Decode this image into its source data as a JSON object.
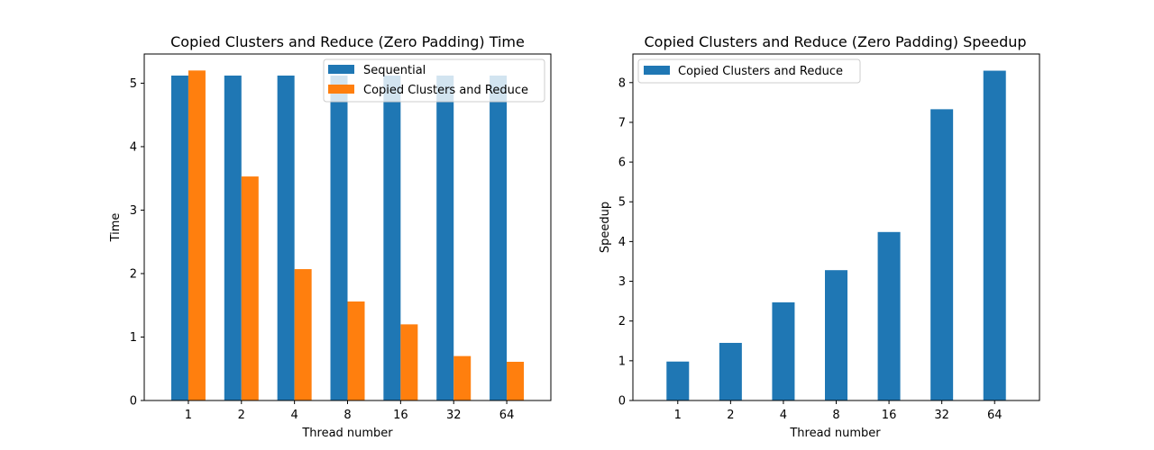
{
  "chart_data": [
    {
      "type": "bar",
      "title": "Copied Clusters and Reduce (Zero Padding) Time",
      "xlabel": "Thread number",
      "ylabel": "Time",
      "categories": [
        "1",
        "2",
        "4",
        "8",
        "16",
        "32",
        "64"
      ],
      "series": [
        {
          "name": "Sequential",
          "color": "#1f77b4",
          "values": [
            5.12,
            5.12,
            5.12,
            5.12,
            5.12,
            5.12,
            5.12
          ]
        },
        {
          "name": "Copied Clusters and Reduce",
          "color": "#ff7f0e",
          "values": [
            5.2,
            3.53,
            2.07,
            1.56,
            1.2,
            0.7,
            0.61
          ]
        }
      ],
      "ylim": [
        0,
        5.46
      ],
      "yticks": [
        0,
        1,
        2,
        3,
        4,
        5
      ],
      "grid": false,
      "legend_position": "top-right"
    },
    {
      "type": "bar",
      "title": "Copied Clusters and Reduce (Zero Padding) Speedup",
      "xlabel": "Thread number",
      "ylabel": "Speedup",
      "categories": [
        "1",
        "2",
        "4",
        "8",
        "16",
        "32",
        "64"
      ],
      "series": [
        {
          "name": "Copied Clusters and Reduce",
          "color": "#1f77b4",
          "values": [
            0.98,
            1.45,
            2.47,
            3.28,
            4.24,
            7.33,
            8.3
          ]
        }
      ],
      "ylim": [
        0,
        8.72
      ],
      "yticks": [
        0,
        1,
        2,
        3,
        4,
        5,
        6,
        7,
        8
      ],
      "grid": false,
      "legend_position": "top-left"
    }
  ]
}
